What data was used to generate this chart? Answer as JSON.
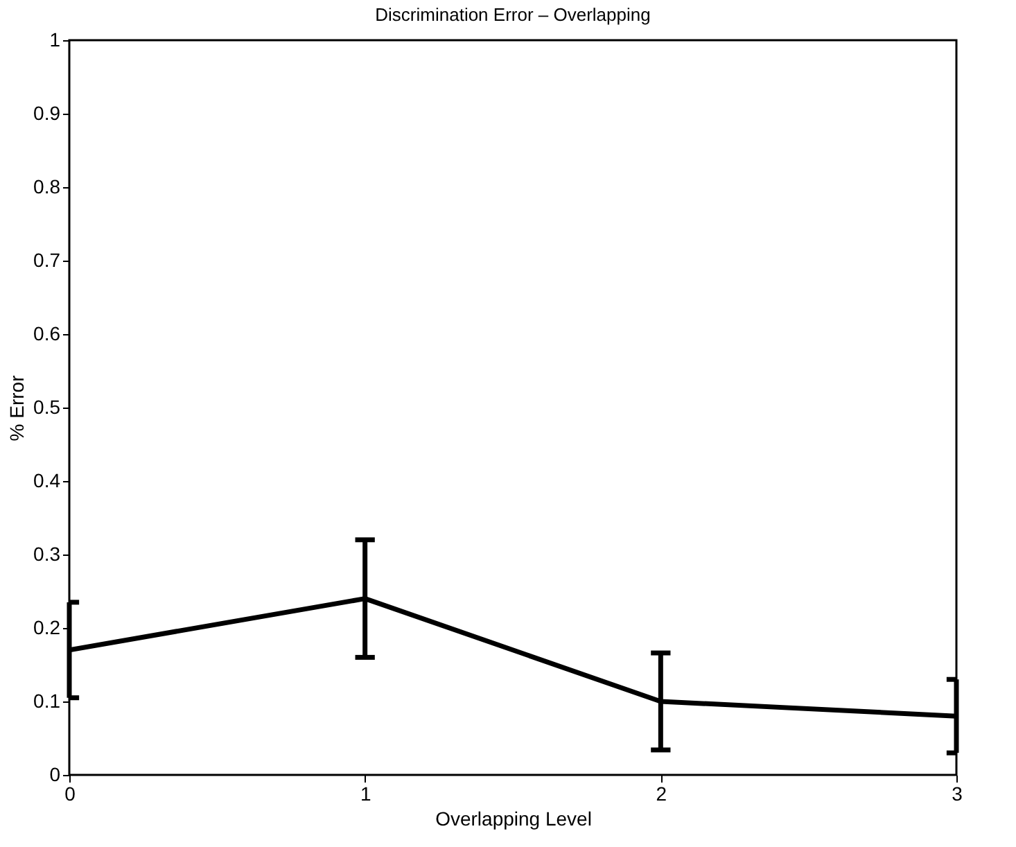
{
  "chart_data": {
    "type": "line",
    "title": "Discrimination Error – Overlapping",
    "xlabel": "Overlapping Level",
    "ylabel": "% Error",
    "x": [
      0,
      1,
      2,
      3
    ],
    "series": [
      {
        "color": "#000000",
        "values": [
          0.17,
          0.24,
          0.1,
          0.08
        ],
        "errors": [
          0.065,
          0.08,
          0.066,
          0.05
        ]
      }
    ],
    "xlim": [
      0,
      3
    ],
    "xticks": [
      0,
      1,
      2,
      3
    ],
    "ylim": [
      0,
      1
    ],
    "yticks": [
      0,
      0.1,
      0.2,
      0.3,
      0.4,
      0.5,
      0.6,
      0.7,
      0.8,
      0.9,
      1
    ],
    "grid": false,
    "marker": "none",
    "line_style": "solid"
  }
}
